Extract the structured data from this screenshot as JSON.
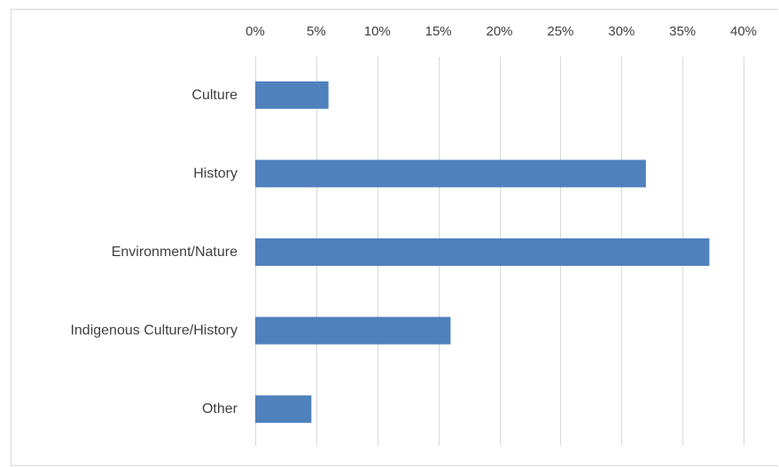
{
  "chart_data": {
    "type": "bar",
    "orientation": "horizontal",
    "title": "",
    "xlabel": "",
    "ylabel": "",
    "categories": [
      "Culture",
      "History",
      "Environment/Nature",
      "Indigenous Culture/History",
      "Other"
    ],
    "values": [
      6,
      32,
      37.2,
      16,
      4.6
    ],
    "xlim": [
      0,
      40
    ],
    "xticks": [
      0,
      5,
      10,
      15,
      20,
      25,
      30,
      35,
      40
    ],
    "xtick_labels": [
      "0%",
      "5%",
      "10%",
      "15%",
      "20%",
      "25%",
      "30%",
      "35%",
      "40%"
    ],
    "x_axis_position": "top",
    "grid": "vertical",
    "legend": "none",
    "bar_color": "#4f81bd",
    "grid_color": "#d9d9d9"
  }
}
